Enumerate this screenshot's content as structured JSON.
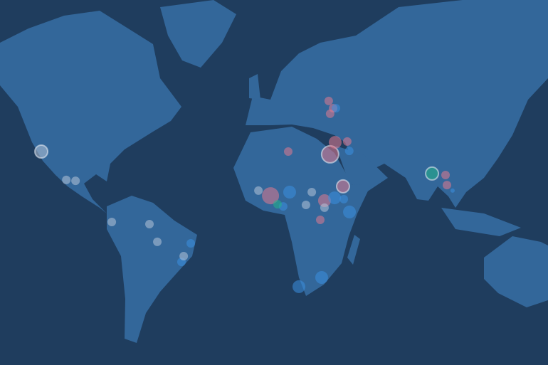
{
  "map": {
    "colors": {
      "ocean": "#1f3d5e",
      "land": "#33679a",
      "pink": "#e07a8f",
      "blue": "#3a8fe0",
      "white": "#b4c4d8",
      "green": "#22b48a"
    },
    "markers": [
      {
        "lon": -112,
        "lat": 25,
        "size": 3,
        "color": "white",
        "ring": true
      },
      {
        "lon": -99.6,
        "lat": 11.7,
        "size": 2,
        "color": "white"
      },
      {
        "lon": -95,
        "lat": 11.3,
        "size": 2,
        "color": "white"
      },
      {
        "lon": -77,
        "lat": -8,
        "size": 2,
        "color": "white"
      },
      {
        "lon": -58.3,
        "lat": -9,
        "size": 2,
        "color": "white"
      },
      {
        "lon": -54.4,
        "lat": -17.3,
        "size": 2,
        "color": "white"
      },
      {
        "lon": -37.8,
        "lat": -18,
        "size": 2,
        "color": "blue"
      },
      {
        "lon": -42.4,
        "lat": -26.7,
        "size": 2,
        "color": "blue"
      },
      {
        "lon": -41.3,
        "lat": -24,
        "size": 2,
        "color": "white"
      },
      {
        "lon": 10.6,
        "lat": 25,
        "size": 2,
        "color": "pink"
      },
      {
        "lon": 30.7,
        "lat": 48.7,
        "size": 2,
        "color": "pink"
      },
      {
        "lon": 32.9,
        "lat": 45.3,
        "size": 2,
        "color": "pink"
      },
      {
        "lon": 34.3,
        "lat": 45.3,
        "size": 2,
        "color": "blue"
      },
      {
        "lon": 31.4,
        "lat": 42.7,
        "size": 2,
        "color": "pink"
      },
      {
        "lon": 31.4,
        "lat": 23.7,
        "size": 4,
        "color": "pink",
        "ring": true
      },
      {
        "lon": 33.9,
        "lat": 29.3,
        "size": 3,
        "color": "pink"
      },
      {
        "lon": 39.9,
        "lat": 29.7,
        "size": 2,
        "color": "pink"
      },
      {
        "lon": 40.9,
        "lat": 25.3,
        "size": 2,
        "color": "blue"
      },
      {
        "lon": -4.2,
        "lat": 6.7,
        "size": 2,
        "color": "white"
      },
      {
        "lon": 1.8,
        "lat": 4.3,
        "size": 4,
        "color": "pink"
      },
      {
        "lon": 11.3,
        "lat": 6,
        "size": 3,
        "color": "blue"
      },
      {
        "lon": 8.1,
        "lat": -0.7,
        "size": 2,
        "color": "blue"
      },
      {
        "lon": 5.3,
        "lat": 0.3,
        "size": 2,
        "color": "green"
      },
      {
        "lon": 22.3,
        "lat": 6,
        "size": 2,
        "color": "white"
      },
      {
        "lon": 19.4,
        "lat": 0,
        "size": 2,
        "color": "white"
      },
      {
        "lon": 28.6,
        "lat": 2,
        "size": 3,
        "color": "pink"
      },
      {
        "lon": 37.8,
        "lat": 8.7,
        "size": 3,
        "color": "pink",
        "ring": true
      },
      {
        "lon": 33.6,
        "lat": 3.3,
        "size": 3,
        "color": "blue"
      },
      {
        "lon": 38.2,
        "lat": 2.7,
        "size": 2,
        "color": "blue"
      },
      {
        "lon": 28.6,
        "lat": -1.3,
        "size": 2,
        "color": "white"
      },
      {
        "lon": 26.5,
        "lat": -7,
        "size": 2,
        "color": "pink"
      },
      {
        "lon": 41,
        "lat": -3.3,
        "size": 3,
        "color": "blue"
      },
      {
        "lon": 15.9,
        "lat": -38.3,
        "size": 3,
        "color": "blue"
      },
      {
        "lon": 27.2,
        "lat": -34,
        "size": 3,
        "color": "blue"
      },
      {
        "lon": 82,
        "lat": 14.7,
        "size": 3,
        "color": "green",
        "ring": true
      },
      {
        "lon": 88.7,
        "lat": 14,
        "size": 2,
        "color": "pink"
      },
      {
        "lon": 89.4,
        "lat": 9.3,
        "size": 2,
        "color": "pink"
      },
      {
        "lon": 92.2,
        "lat": 6.7,
        "size": 1,
        "color": "blue"
      }
    ]
  }
}
